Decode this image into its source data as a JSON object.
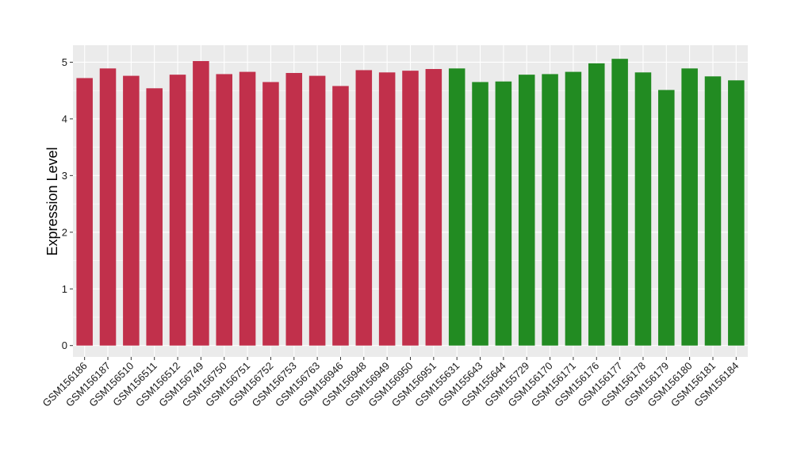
{
  "chart_data": {
    "type": "bar",
    "xlabel": "",
    "ylabel": "Expression Level",
    "ylim": [
      -0.2,
      5.3
    ],
    "yticks": [
      0,
      1,
      2,
      3,
      4,
      5
    ],
    "grid": true,
    "background": "#ebebeb",
    "categories": [
      "GSM156186",
      "GSM156187",
      "GSM156510",
      "GSM156511",
      "GSM156512",
      "GSM156749",
      "GSM156750",
      "GSM156751",
      "GSM156752",
      "GSM156753",
      "GSM156763",
      "GSM156946",
      "GSM156948",
      "GSM156949",
      "GSM156950",
      "GSM156951",
      "GSM155631",
      "GSM155643",
      "GSM155644",
      "GSM155729",
      "GSM156170",
      "GSM156171",
      "GSM156176",
      "GSM156177",
      "GSM156178",
      "GSM156179",
      "GSM156180",
      "GSM156181",
      "GSM156184"
    ],
    "values": [
      4.72,
      4.89,
      4.76,
      4.54,
      4.78,
      5.02,
      4.79,
      4.83,
      4.65,
      4.81,
      4.76,
      4.58,
      4.86,
      4.82,
      4.85,
      4.88,
      4.89,
      4.65,
      4.66,
      4.78,
      4.79,
      4.83,
      4.98,
      5.06,
      4.82,
      4.51,
      4.89,
      4.75,
      4.68
    ],
    "colors": [
      "#c1304b",
      "#c1304b",
      "#c1304b",
      "#c1304b",
      "#c1304b",
      "#c1304b",
      "#c1304b",
      "#c1304b",
      "#c1304b",
      "#c1304b",
      "#c1304b",
      "#c1304b",
      "#c1304b",
      "#c1304b",
      "#c1304b",
      "#c1304b",
      "#228b22",
      "#228b22",
      "#228b22",
      "#228b22",
      "#228b22",
      "#228b22",
      "#228b22",
      "#228b22",
      "#228b22",
      "#228b22",
      "#228b22",
      "#228b22",
      "#228b22"
    ]
  }
}
